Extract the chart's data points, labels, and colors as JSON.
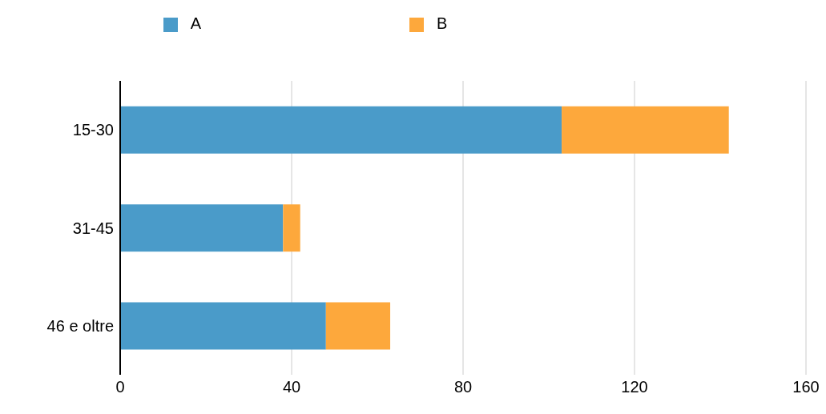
{
  "chart_data": {
    "type": "bar",
    "orientation": "horizontal",
    "stacked": true,
    "categories": [
      "15-30",
      "31-45",
      "46 e oltre"
    ],
    "series": [
      {
        "name": "A",
        "color": "#4a9bc9",
        "values": [
          103,
          38,
          48
        ]
      },
      {
        "name": "B",
        "color": "#fda83c",
        "values": [
          39,
          4,
          15
        ]
      }
    ],
    "xlim": [
      0,
      160
    ],
    "xticks": [
      0,
      40,
      80,
      120,
      160
    ],
    "grid": "x",
    "legend": "top"
  }
}
